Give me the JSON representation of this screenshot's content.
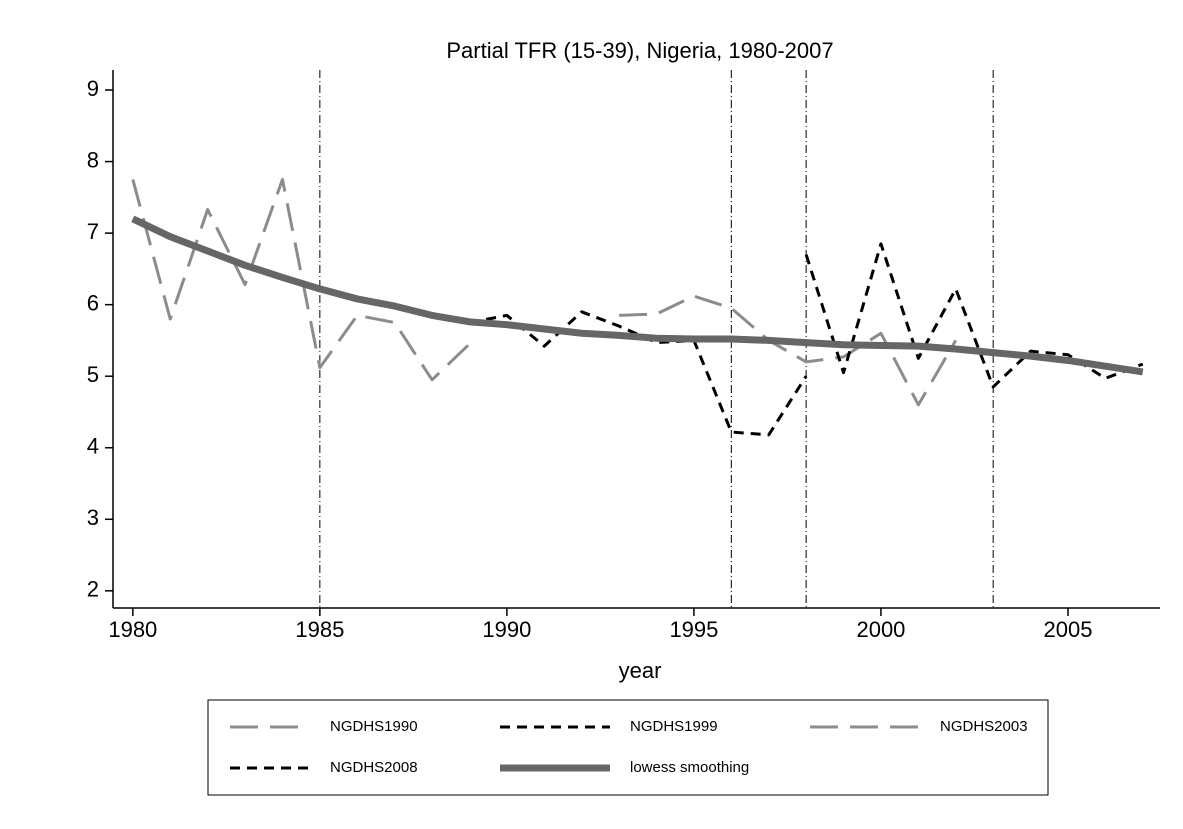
{
  "chart_data": {
    "type": "line",
    "title": "Partial TFR (15-39), Nigeria, 1980-2007",
    "x_label": "year",
    "x": [
      1980,
      1981,
      1982,
      1983,
      1984,
      1985,
      1986,
      1987,
      1988,
      1989,
      1990,
      1991,
      1992,
      1993,
      1994,
      1995,
      1996,
      1997,
      1998,
      1999,
      2000,
      2001,
      2002,
      2003,
      2004,
      2005,
      2006,
      2007
    ],
    "series": [
      {
        "name": "NGDHS1990",
        "color": "#8c8c8c",
        "dash": "long",
        "values": [
          7.75,
          5.8,
          7.33,
          6.28,
          7.75,
          5.12,
          5.85,
          5.75,
          4.95,
          5.45,
          null,
          null,
          null,
          null,
          null,
          null,
          null,
          null,
          null,
          null,
          null,
          null,
          null,
          null,
          null,
          null,
          null,
          null
        ]
      },
      {
        "name": "NGDHS1999",
        "color": "#000000",
        "dash": "short",
        "values": [
          null,
          null,
          null,
          null,
          null,
          null,
          null,
          null,
          null,
          5.75,
          5.85,
          5.42,
          5.9,
          5.7,
          5.47,
          5.5,
          4.22,
          4.18,
          5.0,
          null,
          null,
          null,
          null,
          null,
          null,
          null,
          null,
          null
        ]
      },
      {
        "name": "NGDHS2003",
        "color": "#8c8c8c",
        "dash": "long",
        "values": [
          null,
          null,
          null,
          null,
          null,
          null,
          null,
          null,
          null,
          null,
          null,
          null,
          null,
          5.85,
          5.87,
          6.12,
          5.95,
          5.5,
          5.2,
          5.27,
          5.6,
          4.6,
          5.5,
          null,
          null,
          null,
          null,
          null
        ]
      },
      {
        "name": "NGDHS2008",
        "color": "#000000",
        "dash": "short",
        "values": [
          null,
          null,
          null,
          null,
          null,
          null,
          null,
          null,
          null,
          null,
          null,
          null,
          null,
          null,
          null,
          null,
          null,
          null,
          6.7,
          5.05,
          6.85,
          5.25,
          6.22,
          4.85,
          5.35,
          5.3,
          4.97,
          5.17
        ]
      },
      {
        "name": "lowess smoothing",
        "color": "#666666",
        "dash": "solid",
        "values": [
          7.2,
          6.95,
          6.75,
          6.55,
          6.38,
          6.22,
          6.08,
          5.98,
          5.85,
          5.76,
          5.72,
          5.66,
          5.6,
          5.57,
          5.53,
          5.52,
          5.52,
          5.5,
          5.47,
          5.44,
          5.43,
          5.42,
          5.38,
          5.33,
          5.28,
          5.22,
          5.14,
          5.06
        ]
      }
    ],
    "reference_lines": [
      1985,
      1996,
      1998,
      2003
    ],
    "xlim": [
      1979.47,
      2007.46
    ],
    "xticks": [
      1980,
      1985,
      1990,
      1995,
      2000,
      2005
    ],
    "ylim": [
      1.76,
      9.28
    ],
    "yticks": [
      2,
      3,
      4,
      5,
      6,
      7,
      8,
      9
    ],
    "grid": false,
    "legend": "bottom"
  }
}
